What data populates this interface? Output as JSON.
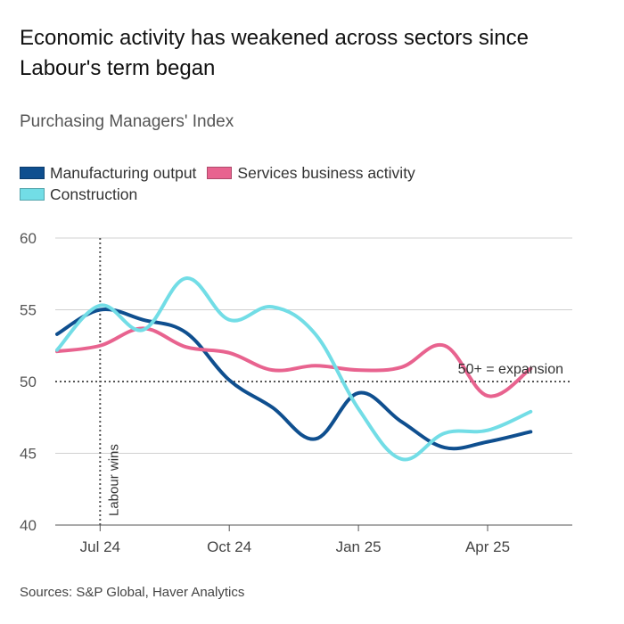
{
  "header": {
    "title": "Economic activity has weakened across sectors since Labour's term began",
    "subtitle": "Purchasing Managers' Index"
  },
  "legend": {
    "items": [
      {
        "label": "Manufacturing output",
        "color": "#0f4f8f"
      },
      {
        "label": "Services business activity",
        "color": "#e8638f"
      },
      {
        "label": "Construction",
        "color": "#72dde6"
      }
    ]
  },
  "chart_data": {
    "type": "line",
    "title": "Economic activity has weakened across sectors since Labour's term began",
    "subtitle": "Purchasing Managers' Index",
    "xlabel": "",
    "ylabel": "",
    "x": [
      "Jun 24",
      "Jul 24",
      "Aug 24",
      "Sep 24",
      "Oct 24",
      "Nov 24",
      "Dec 24",
      "Jan 25",
      "Feb 25",
      "Mar 25",
      "Apr 25",
      "May 25"
    ],
    "x_ticks": [
      "Jul 24",
      "Oct 24",
      "Jan 25",
      "Apr 25"
    ],
    "ylim": [
      40,
      60
    ],
    "y_ticks": [
      40,
      45,
      50,
      55,
      60
    ],
    "grid": true,
    "series": [
      {
        "name": "Manufacturing output",
        "color": "#0f4f8f",
        "values": [
          53.3,
          55.0,
          54.3,
          53.4,
          50.1,
          48.2,
          46.0,
          49.2,
          47.2,
          45.4,
          45.8,
          46.5
        ]
      },
      {
        "name": "Services business activity",
        "color": "#e8638f",
        "values": [
          52.1,
          52.5,
          53.7,
          52.4,
          52.0,
          50.8,
          51.1,
          50.8,
          51.0,
          52.5,
          49.0,
          50.9
        ]
      },
      {
        "name": "Construction",
        "color": "#72dde6",
        "values": [
          52.2,
          55.3,
          53.6,
          57.2,
          54.3,
          55.2,
          53.3,
          48.1,
          44.6,
          46.4,
          46.6,
          47.9
        ]
      }
    ],
    "reference_line": {
      "value": 50,
      "label": "50+ = expansion"
    },
    "event_marker": {
      "x": "Jul 24",
      "label": "Labour wins"
    }
  },
  "footer": {
    "source": "Sources: S&P Global, Haver Analytics"
  }
}
